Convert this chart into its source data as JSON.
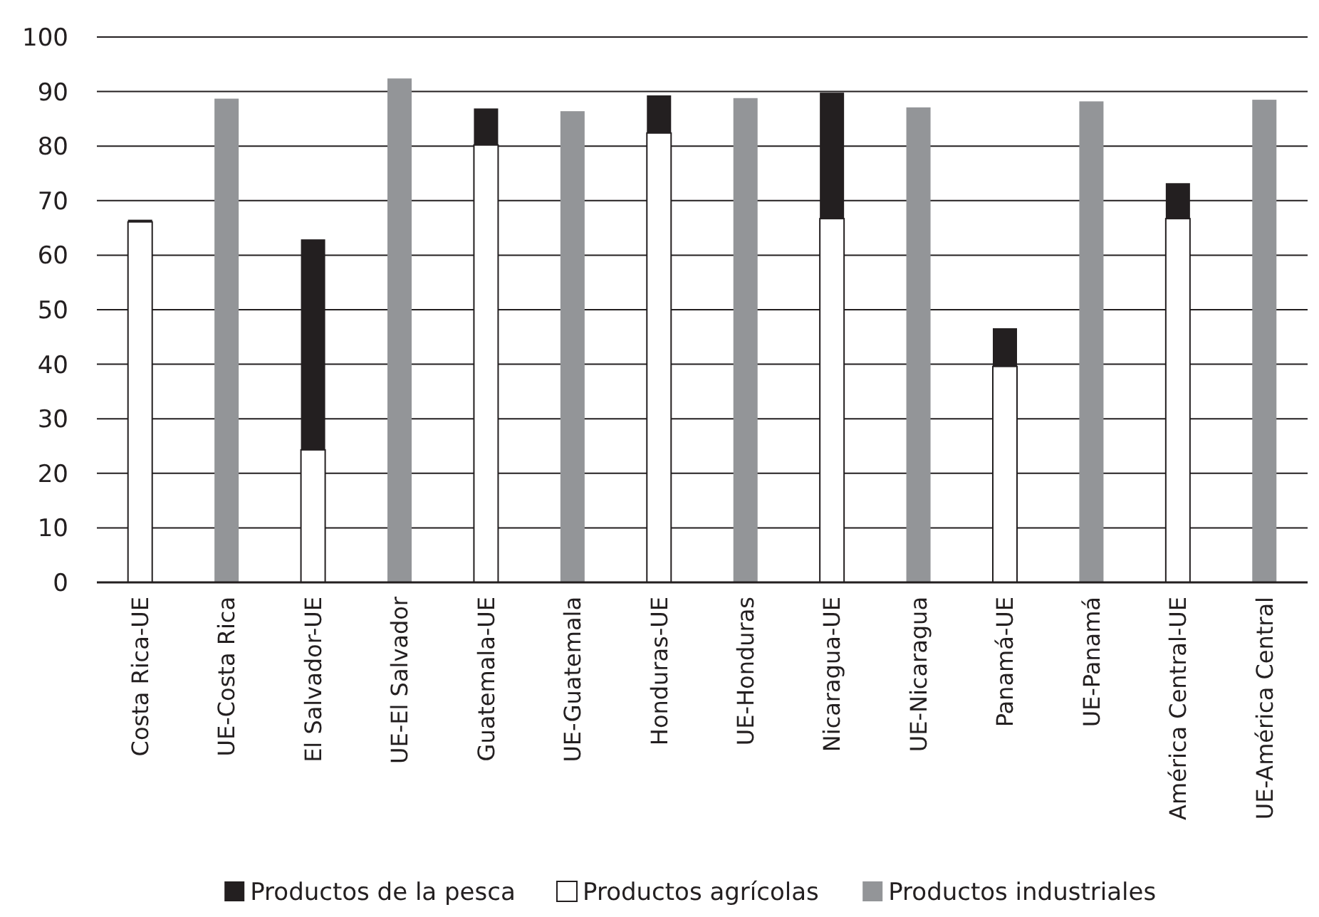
{
  "chart_data": {
    "type": "bar",
    "stacked": true,
    "categories": [
      "Costa Rica-UE",
      "UE-Costa Rica",
      "El Salvador-UE",
      "UE-El Salvador",
      "Guatemala-UE",
      "UE-Guatemala",
      "Honduras-UE",
      "UE-Honduras",
      "Nicaragua-UE",
      "UE-Nicaragua",
      "Panamá-UE",
      "UE-Panamá",
      "América Central-UE",
      "UE-América Central"
    ],
    "series": [
      {
        "name": "Productos industriales",
        "color": "#939598",
        "values": [
          null,
          88.7,
          null,
          92.4,
          null,
          86.4,
          null,
          88.8,
          null,
          87.1,
          null,
          88.2,
          null,
          88.5
        ]
      },
      {
        "name": "Productos agrícolas",
        "color": "#ffffff",
        "values": [
          66.1,
          null,
          24.3,
          null,
          80.2,
          null,
          82.4,
          null,
          66.7,
          null,
          39.6,
          null,
          66.7,
          null
        ]
      },
      {
        "name": "Productos de la pesca",
        "color": "#231f20",
        "values": [
          0.4,
          null,
          38.6,
          null,
          6.7,
          null,
          6.9,
          null,
          23.1,
          null,
          7.0,
          null,
          6.5,
          null
        ]
      }
    ],
    "ylim": [
      0,
      100
    ],
    "yticks": [
      0,
      10,
      20,
      30,
      40,
      50,
      60,
      70,
      80,
      90,
      100
    ],
    "grid": "y",
    "legend": "bottom"
  }
}
